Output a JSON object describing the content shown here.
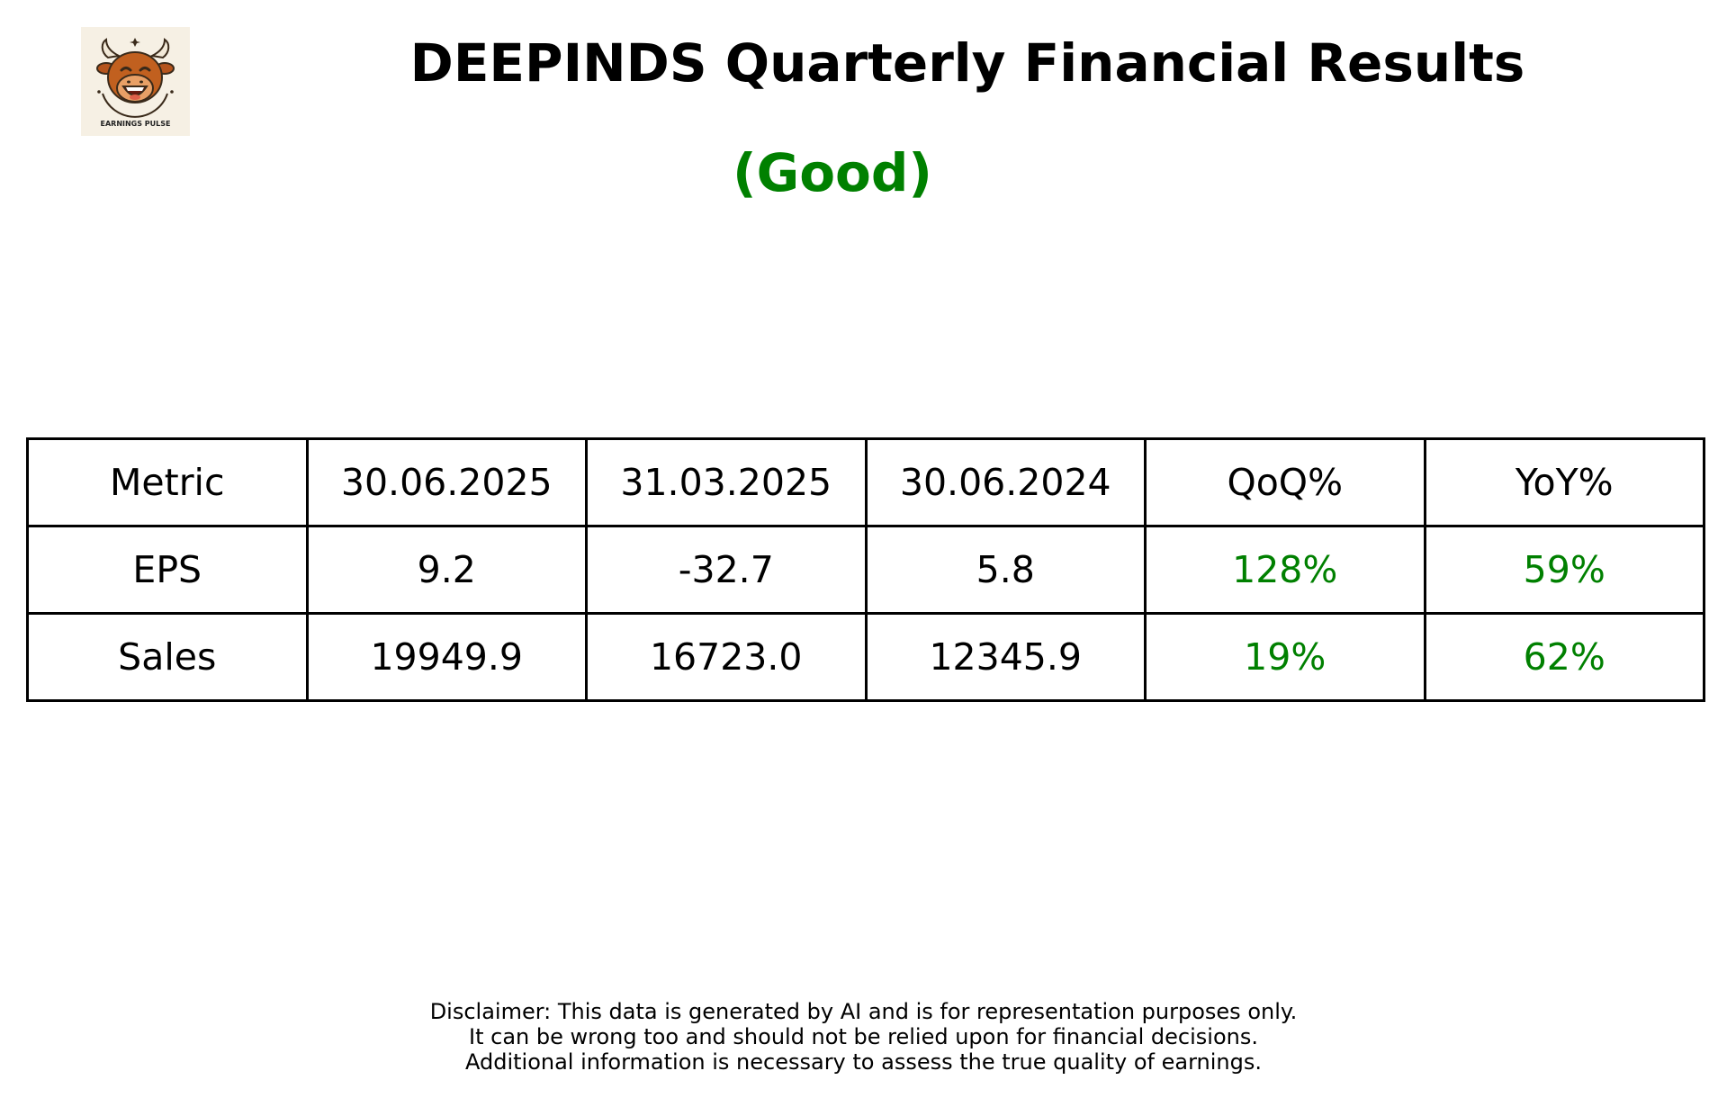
{
  "header": {
    "logo_text": "EARNINGS PULSE",
    "title": "DEEPINDS Quarterly Financial Results",
    "rating": "(Good)",
    "rating_color": "#008000"
  },
  "table": {
    "headers": [
      "Metric",
      "30.06.2025",
      "31.03.2025",
      "30.06.2024",
      "QoQ%",
      "YoY%"
    ],
    "rows": [
      [
        "EPS",
        "9.2",
        "-32.7",
        "5.8",
        "128%",
        "59%"
      ],
      [
        "Sales",
        "19949.9",
        "16723.0",
        "12345.9",
        "19%",
        "62%"
      ]
    ],
    "positive_color": "#008000"
  },
  "disclaimer": {
    "lines": [
      "Disclaimer: This data is generated by AI and is for representation purposes only.",
      "It can be wrong too and should not be relied upon for financial decisions.",
      "Additional information is necessary to assess the true quality of earnings."
    ]
  },
  "icons": {
    "logo": "bull-mascot-icon"
  }
}
